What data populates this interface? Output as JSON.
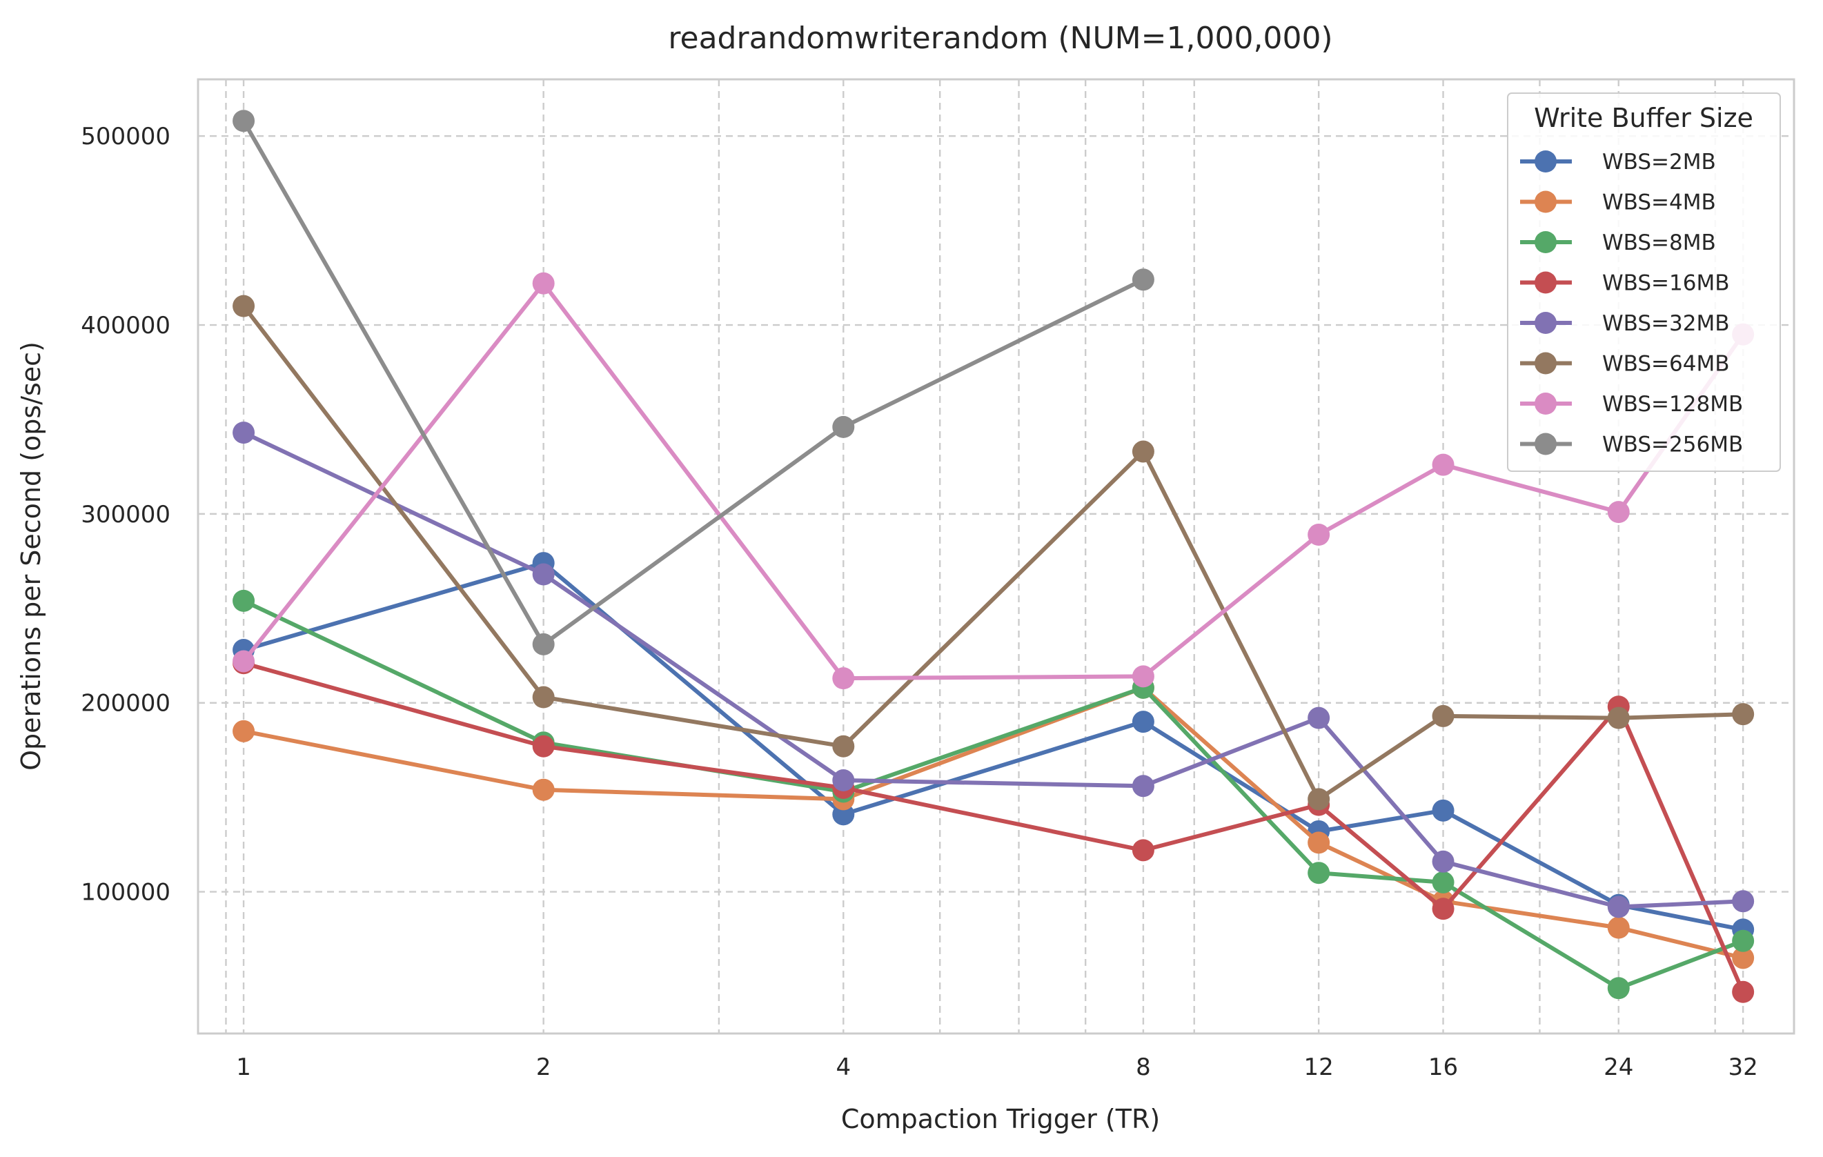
{
  "chart_data": {
    "type": "line",
    "title": "readrandomwriterandom (NUM=1,000,000)",
    "xlabel": "Compaction Trigger (TR)",
    "ylabel": "Operations per Second (ops/sec)",
    "x_scale": "log2",
    "x": [
      1,
      2,
      4,
      8,
      12,
      16,
      24,
      32
    ],
    "x_tick_labels": [
      "1",
      "2",
      "4",
      "8",
      "12",
      "16",
      "24",
      "32"
    ],
    "xlim": [
      0.9,
      36
    ],
    "y_ticks": [
      100000,
      200000,
      300000,
      400000,
      500000
    ],
    "y_tick_labels": [
      "100000",
      "200000",
      "300000",
      "400000",
      "500000"
    ],
    "ylim": [
      25000,
      530000
    ],
    "grid": true,
    "legend": {
      "title": "Write Buffer Size",
      "position": "top-right"
    },
    "series": [
      {
        "name": "WBS=2MB",
        "color": "#4c72b0",
        "values": [
          228000,
          274000,
          141000,
          190000,
          132000,
          143000,
          93000,
          80000
        ]
      },
      {
        "name": "WBS=4MB",
        "color": "#dd8452",
        "values": [
          185000,
          154000,
          149000,
          208000,
          126000,
          95000,
          81000,
          65000
        ]
      },
      {
        "name": "WBS=8MB",
        "color": "#55a868",
        "values": [
          254000,
          179000,
          153000,
          208000,
          110000,
          105000,
          49000,
          74000
        ]
      },
      {
        "name": "WBS=16MB",
        "color": "#c44e52",
        "values": [
          221000,
          177000,
          155000,
          122000,
          146000,
          91000,
          198000,
          47000
        ]
      },
      {
        "name": "WBS=32MB",
        "color": "#8172b3",
        "values": [
          343000,
          268000,
          159000,
          156000,
          192000,
          116000,
          92000,
          95000
        ]
      },
      {
        "name": "WBS=64MB",
        "color": "#937860",
        "values": [
          410000,
          203000,
          177000,
          333000,
          149000,
          193000,
          192000,
          194000
        ]
      },
      {
        "name": "WBS=128MB",
        "color": "#da8bc3",
        "values": [
          222000,
          422000,
          213000,
          214000,
          289000,
          326000,
          301000,
          395000
        ]
      },
      {
        "name": "WBS=256MB",
        "color": "#8c8c8c",
        "values": [
          508000,
          231000,
          346000,
          424000,
          null,
          null,
          null,
          null
        ]
      }
    ]
  }
}
